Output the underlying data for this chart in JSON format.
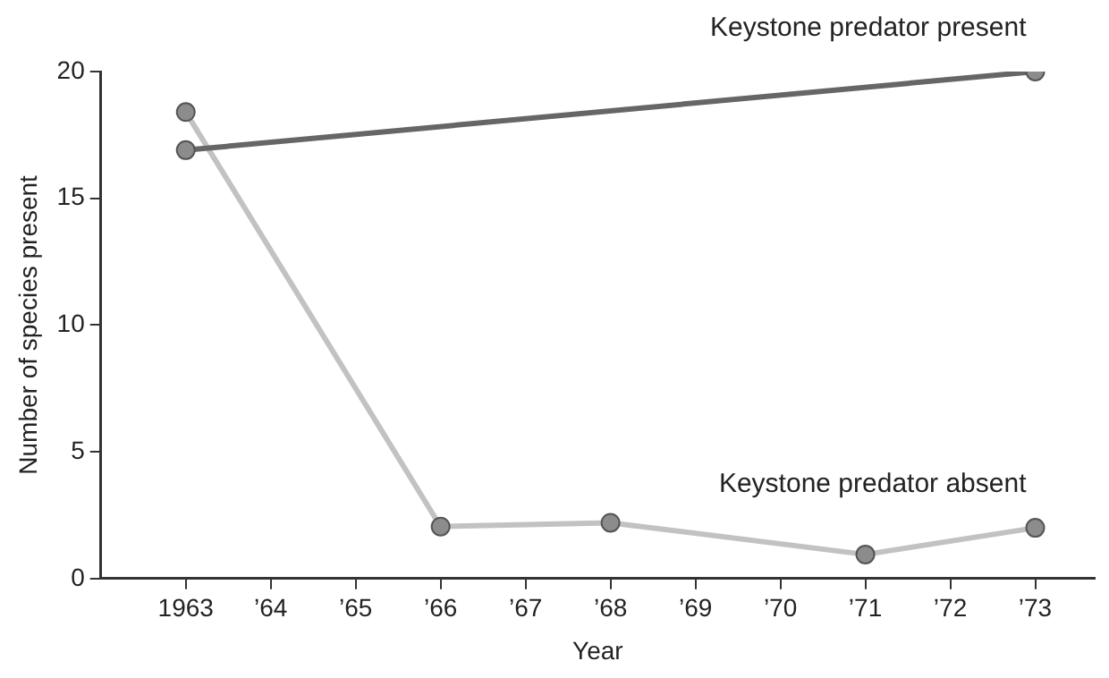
{
  "chart_data": {
    "type": "line",
    "xlabel": "Year",
    "ylabel": "Number of species present",
    "xlim": [
      1962,
      1973.7
    ],
    "ylim": [
      0,
      20
    ],
    "yticks": [
      0,
      5,
      10,
      15,
      20
    ],
    "xticks": [
      {
        "value": 1963,
        "label": "1963"
      },
      {
        "value": 1964,
        "label": "’64"
      },
      {
        "value": 1965,
        "label": "’65"
      },
      {
        "value": 1966,
        "label": "’66"
      },
      {
        "value": 1967,
        "label": "’67"
      },
      {
        "value": 1968,
        "label": "’68"
      },
      {
        "value": 1969,
        "label": "’69"
      },
      {
        "value": 1970,
        "label": "’70"
      },
      {
        "value": 1971,
        "label": "’71"
      },
      {
        "value": 1972,
        "label": "’72"
      },
      {
        "value": 1973,
        "label": "’73"
      }
    ],
    "grid": false,
    "legend": false,
    "marker": "circle",
    "series": [
      {
        "name": "Keystone predator present",
        "color": "#666666",
        "x": [
          1963,
          1973
        ],
        "values": [
          16.9,
          20
        ]
      },
      {
        "name": "Keystone predator absent",
        "color": "#c2c2c2",
        "x": [
          1963,
          1966,
          1968,
          1971,
          1973
        ],
        "values": [
          18.4,
          2.05,
          2.2,
          0.95,
          2.0
        ]
      }
    ]
  }
}
